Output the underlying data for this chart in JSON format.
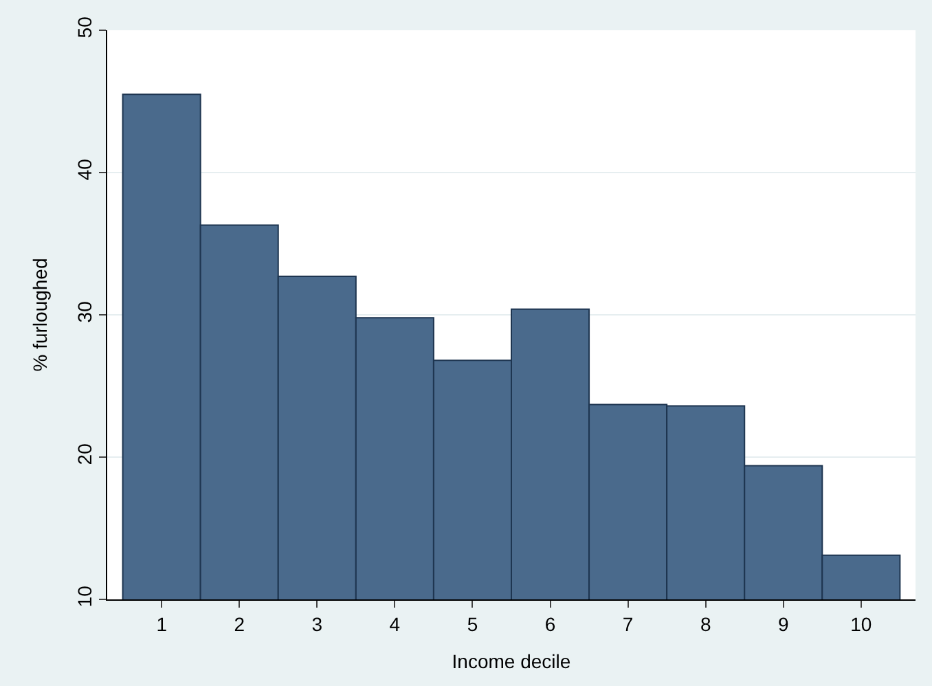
{
  "chart_data": {
    "type": "bar",
    "xlabel": "Income decile",
    "ylabel": "% furloughed",
    "categories": [
      "1",
      "2",
      "3",
      "4",
      "5",
      "6",
      "7",
      "8",
      "9",
      "10"
    ],
    "values": [
      45.5,
      36.3,
      32.7,
      29.8,
      26.8,
      30.4,
      23.7,
      23.6,
      19.4,
      13.1
    ],
    "color": "#4a6a8c",
    "ylim": [
      10,
      50
    ],
    "yticks": [
      10,
      20,
      30,
      40,
      50
    ],
    "grid": "y",
    "legend": false
  }
}
